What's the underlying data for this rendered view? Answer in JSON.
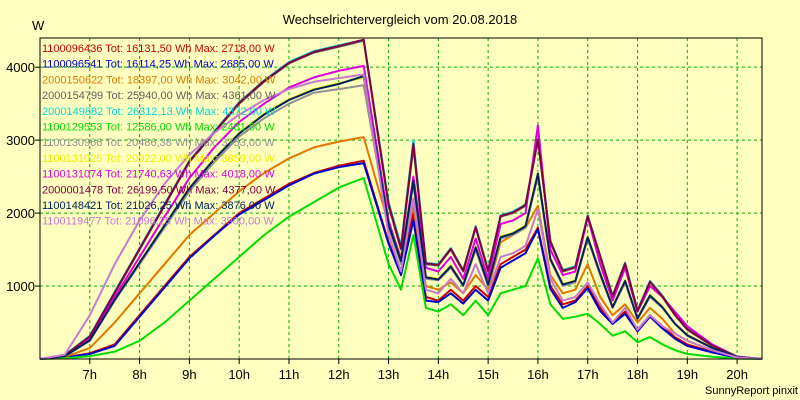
{
  "chart_data": {
    "type": "line",
    "title": "Wechselrichtervergleich vom 20.08.2018",
    "ylabel": "W",
    "footer": "SunnyReport pinxit",
    "x_range": [
      6.0,
      20.5
    ],
    "ylim": [
      0,
      4400
    ],
    "x_ticks": [
      {
        "v": 7,
        "label": "7h"
      },
      {
        "v": 8,
        "label": "8h"
      },
      {
        "v": 9,
        "label": "9h"
      },
      {
        "v": 10,
        "label": "10h"
      },
      {
        "v": 11,
        "label": "11h"
      },
      {
        "v": 12,
        "label": "12h"
      },
      {
        "v": 13,
        "label": "13h"
      },
      {
        "v": 14,
        "label": "14h"
      },
      {
        "v": 15,
        "label": "15h"
      },
      {
        "v": 16,
        "label": "16h"
      },
      {
        "v": 17,
        "label": "17h"
      },
      {
        "v": 18,
        "label": "18h"
      },
      {
        "v": 19,
        "label": "19h"
      },
      {
        "v": 20,
        "label": "20h"
      }
    ],
    "y_ticks": [
      1000,
      2000,
      3000,
      4000
    ],
    "grid": true,
    "legend_position": "top-left",
    "x": [
      6.0,
      6.5,
      7.0,
      7.5,
      8.0,
      8.5,
      9.0,
      9.5,
      10.0,
      10.5,
      11.0,
      11.5,
      12.0,
      12.5,
      13.0,
      13.25,
      13.5,
      13.75,
      14.0,
      14.25,
      14.5,
      14.75,
      15.0,
      15.25,
      15.5,
      15.75,
      16.0,
      16.25,
      16.5,
      16.75,
      17.0,
      17.25,
      17.5,
      17.75,
      18.0,
      18.25,
      18.5,
      18.75,
      19.0,
      19.5,
      20.0,
      20.5
    ],
    "series": [
      {
        "legend": "1100096436 Tot: 16131,50 Wh Max: 2718,00 W",
        "color": "#cc0000",
        "values": [
          0,
          20,
          80,
          200,
          600,
          1000,
          1400,
          1700,
          2000,
          2200,
          2400,
          2550,
          2650,
          2718,
          1600,
          1200,
          2000,
          850,
          800,
          950,
          800,
          1000,
          850,
          1300,
          1400,
          1500,
          1800,
          1000,
          750,
          800,
          1000,
          700,
          500,
          650,
          400,
          600,
          450,
          300,
          200,
          100,
          20,
          0
        ]
      },
      {
        "legend": "1100096541 Tot: 16114,25 Wh Max: 2685,00 W",
        "color": "#0000cc",
        "values": [
          0,
          20,
          70,
          180,
          580,
          980,
          1380,
          1690,
          1980,
          2180,
          2380,
          2540,
          2630,
          2685,
          1580,
          1150,
          1900,
          800,
          780,
          900,
          760,
          950,
          800,
          1250,
          1350,
          1450,
          1780,
          960,
          700,
          780,
          970,
          660,
          480,
          620,
          380,
          580,
          420,
          280,
          180,
          90,
          15,
          0
        ]
      },
      {
        "legend": "2000150622 Tot: 18397,00 Wh Max: 3042,00 W",
        "color": "#e07800",
        "values": [
          0,
          30,
          150,
          500,
          900,
          1300,
          1700,
          2000,
          2300,
          2550,
          2750,
          2900,
          2980,
          3042,
          1850,
          1400,
          2100,
          1000,
          950,
          1050,
          900,
          1150,
          950,
          1600,
          1700,
          1800,
          2100,
          1150,
          900,
          950,
          1300,
          850,
          600,
          750,
          500,
          700,
          550,
          350,
          250,
          120,
          25,
          0
        ]
      },
      {
        "legend": "2000154799 Tot: 25940,00 Wh Max: 4361,00 W",
        "color": "#606060",
        "values": [
          0,
          50,
          300,
          900,
          1500,
          2100,
          2700,
          3100,
          3500,
          3800,
          4050,
          4200,
          4280,
          4361,
          2100,
          1500,
          2900,
          1300,
          1280,
          1500,
          1200,
          1800,
          1200,
          1950,
          2000,
          2100,
          3000,
          1600,
          1200,
          1250,
          1950,
          1400,
          850,
          1300,
          650,
          1050,
          850,
          600,
          400,
          180,
          30,
          0
        ]
      },
      {
        "legend": "2000149882 Tot: 26312,13 Wh Max: 4372,00 W",
        "color": "#00d8d8",
        "values": [
          0,
          55,
          320,
          920,
          1520,
          2120,
          2720,
          3120,
          3520,
          3820,
          4070,
          4220,
          4300,
          4372,
          2150,
          1550,
          3000,
          1320,
          1300,
          1520,
          1220,
          1820,
          1220,
          1970,
          2020,
          2120,
          3020,
          1620,
          1220,
          1270,
          1970,
          1420,
          870,
          1320,
          670,
          1070,
          870,
          620,
          420,
          190,
          35,
          0
        ]
      },
      {
        "legend": "1100129553 Tot: 12586,00 Wh Max: 2481,00 W",
        "color": "#00dd00",
        "values": [
          0,
          10,
          40,
          100,
          250,
          500,
          800,
          1100,
          1400,
          1700,
          1950,
          2150,
          2350,
          2481,
          1300,
          950,
          1700,
          700,
          650,
          750,
          600,
          800,
          600,
          900,
          950,
          1000,
          1380,
          750,
          550,
          580,
          620,
          480,
          320,
          380,
          230,
          300,
          200,
          120,
          70,
          30,
          5,
          0
        ]
      },
      {
        "legend": "1100130966 Tot: 20486,38 Wh Max: 3753,00 W",
        "color": "#909090",
        "values": [
          0,
          40,
          250,
          800,
          1300,
          1800,
          2300,
          2700,
          3050,
          3300,
          3500,
          3650,
          3700,
          3753,
          1800,
          1300,
          2400,
          1100,
          1080,
          1250,
          1000,
          1500,
          1000,
          1650,
          1700,
          1800,
          2500,
          1350,
          1000,
          1050,
          1650,
          1150,
          700,
          1050,
          550,
          850,
          700,
          480,
          320,
          150,
          25,
          0
        ]
      },
      {
        "legend": "1100131025 Tot: 20922,00 Wh Max: 3859,00 W",
        "color": "#eeee00",
        "values": [
          0,
          42,
          260,
          820,
          1330,
          1840,
          2350,
          2750,
          3100,
          3360,
          3560,
          3700,
          3780,
          3859,
          1850,
          1350,
          2450,
          1130,
          1100,
          1280,
          1020,
          1540,
          1030,
          1680,
          1730,
          1830,
          2550,
          1380,
          1030,
          1080,
          1680,
          1180,
          720,
          1080,
          560,
          880,
          720,
          490,
          330,
          155,
          26,
          0
        ]
      },
      {
        "legend": "1100131074 Tot: 21740,63 Wh Max: 4018,00 W",
        "color": "#dd00dd",
        "values": [
          0,
          45,
          280,
          850,
          1400,
          1950,
          2480,
          2900,
          3250,
          3500,
          3720,
          3860,
          3950,
          4018,
          1900,
          1350,
          2500,
          1250,
          1200,
          1400,
          1100,
          1650,
          1100,
          1850,
          1900,
          2000,
          3200,
          1500,
          1150,
          1200,
          1950,
          1300,
          800,
          1250,
          650,
          1000,
          850,
          650,
          450,
          200,
          30,
          0
        ]
      },
      {
        "legend": "2000001478 Tot: 26199,50 Wh Max: 4377,00 W",
        "color": "#800040",
        "values": [
          0,
          52,
          310,
          910,
          1510,
          2110,
          2710,
          3110,
          3510,
          3810,
          4060,
          4210,
          4290,
          4377,
          2120,
          1520,
          2950,
          1310,
          1290,
          1510,
          1210,
          1810,
          1210,
          1960,
          2010,
          2110,
          3010,
          1610,
          1210,
          1260,
          1960,
          1410,
          860,
          1310,
          660,
          1060,
          860,
          610,
          410,
          185,
          32,
          0
        ]
      },
      {
        "legend": "1100148421 Tot: 21026,25 Wh Max: 3876,00 W",
        "color": "#002060",
        "values": [
          0,
          40,
          255,
          810,
          1320,
          1830,
          2340,
          2740,
          3090,
          3350,
          3550,
          3690,
          3770,
          3876,
          1840,
          1340,
          2440,
          1120,
          1090,
          1270,
          1010,
          1530,
          1020,
          1670,
          1720,
          1820,
          2540,
          1370,
          1020,
          1070,
          1670,
          1170,
          710,
          1070,
          555,
          870,
          710,
          485,
          325,
          152,
          25,
          0
        ]
      },
      {
        "legend": "1100119477 Tot: 21096,25 Wh Max: 3900,00 W",
        "color": "#c878d0",
        "values": [
          0,
          60,
          600,
          1300,
          1900,
          2400,
          2800,
          3100,
          3350,
          3550,
          3700,
          3800,
          3850,
          3900,
          1700,
          1200,
          2200,
          950,
          900,
          1100,
          900,
          1300,
          900,
          1400,
          1450,
          1550,
          2050,
          1100,
          800,
          850,
          1050,
          750,
          500,
          700,
          400,
          600,
          450,
          350,
          250,
          120,
          20,
          0
        ]
      }
    ]
  }
}
